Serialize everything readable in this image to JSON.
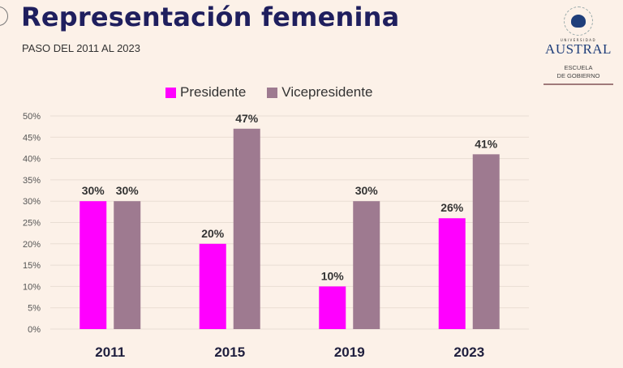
{
  "header": {
    "title": "Representación femenina",
    "subtitle": "PASO DEL 2011 AL 2023"
  },
  "logo": {
    "icon": "tree-emblem-icon",
    "top_text": "UNIVERSIDAD",
    "name": "AUSTRAL",
    "school_line1": "ESCUELA",
    "school_line2": "DE GOBIERNO"
  },
  "colors": {
    "presidente": "#ff00ff",
    "vicepresidente": "#9e7a90",
    "background": "#fcf1e8",
    "title": "#1f1f5e"
  },
  "chart_data": {
    "type": "bar",
    "title": "Representación femenina",
    "subtitle": "PASO DEL 2011 AL 2023",
    "categories": [
      "2011",
      "2015",
      "2019",
      "2023"
    ],
    "series": [
      {
        "name": "Presidente",
        "values": [
          30,
          20,
          10,
          26
        ],
        "labels": [
          "30%",
          "20%",
          "10%",
          "26%"
        ]
      },
      {
        "name": "Vicepresidente",
        "values": [
          30,
          47,
          30,
          41
        ],
        "labels": [
          "30%",
          "47%",
          "30%",
          "41%"
        ]
      }
    ],
    "yticks": [
      "0%",
      "5%",
      "10%",
      "15%",
      "20%",
      "25%",
      "30%",
      "35%",
      "40%",
      "45%",
      "50%"
    ],
    "ylim": [
      0,
      50
    ],
    "xlabel": "",
    "ylabel": "",
    "grid": true,
    "legend_position": "top"
  }
}
